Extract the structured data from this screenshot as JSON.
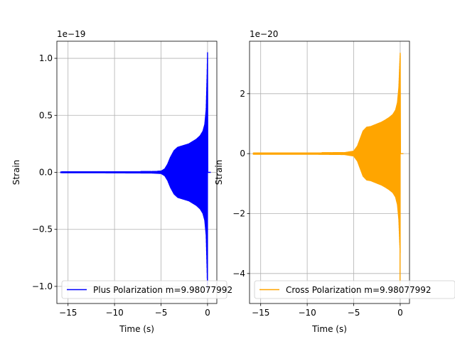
{
  "chart_data": [
    {
      "type": "line",
      "title": "",
      "xlabel": "Time (s)",
      "ylabel": "Strain",
      "offset_label": "1e−19",
      "xlim": [
        -16.2,
        1.0
      ],
      "ylim": [
        -1.15,
        1.15
      ],
      "xticks": [
        -15,
        -10,
        -5,
        0
      ],
      "xtick_labels": [
        "−15",
        "−10",
        "−5",
        "0"
      ],
      "yticks": [
        -1.0,
        -0.5,
        0.0,
        0.5,
        1.0
      ],
      "ytick_labels": [
        "−1.0",
        "−0.5",
        "0.0",
        "0.5",
        "1.0"
      ],
      "grid": true,
      "legend_position": "lower-left",
      "series": [
        {
          "name": "Plus Polarization m=9.98077992",
          "color": "#0000ff",
          "t_start": -15.8,
          "t_end": 0.0,
          "envelope": {
            "t": [
              -15.8,
              -10.0,
              -6.0,
              -5.0,
              -4.6,
              -4.3,
              -4.0,
              -3.6,
              -3.2,
              -2.8,
              -2.4,
              -2.0,
              -1.6,
              -1.2,
              -0.8,
              -0.5,
              -0.3,
              -0.15,
              -0.05,
              0.0
            ],
            "amp": [
              0.003,
              0.004,
              0.006,
              0.01,
              0.03,
              0.07,
              0.13,
              0.19,
              0.22,
              0.23,
              0.24,
              0.25,
              0.27,
              0.29,
              0.32,
              0.36,
              0.42,
              0.55,
              0.85,
              1.05
            ]
          }
        }
      ]
    },
    {
      "type": "line",
      "title": "",
      "xlabel": "Time (s)",
      "ylabel": "Strain",
      "offset_label": "1e−20",
      "xlim": [
        -16.2,
        1.0
      ],
      "ylim": [
        -5.0,
        3.75
      ],
      "xticks": [
        -15,
        -10,
        -5,
        0
      ],
      "xtick_labels": [
        "−15",
        "−10",
        "−5",
        "0"
      ],
      "yticks": [
        -4,
        -2,
        0,
        2
      ],
      "ytick_labels": [
        "−4",
        "−2",
        "0",
        "2"
      ],
      "grid": true,
      "legend_position": "lower-left",
      "series": [
        {
          "name": "Cross Polarization m=9.98077992",
          "color": "#ffa500",
          "t_start": -15.8,
          "t_end": 0.0,
          "envelope": {
            "t": [
              -15.8,
              -10.0,
              -6.0,
              -5.0,
              -4.6,
              -4.3,
              -4.0,
              -3.6,
              -3.2,
              -2.8,
              -2.4,
              -2.0,
              -1.6,
              -1.2,
              -0.8,
              -0.5,
              -0.3,
              -0.15,
              -0.05,
              0.0
            ],
            "amp": [
              0.02,
              0.02,
              0.03,
              0.08,
              0.25,
              0.5,
              0.75,
              0.88,
              0.9,
              0.95,
              1.0,
              1.05,
              1.12,
              1.2,
              1.3,
              1.45,
              1.7,
              2.2,
              3.0,
              3.35
            ]
          }
        }
      ]
    }
  ]
}
